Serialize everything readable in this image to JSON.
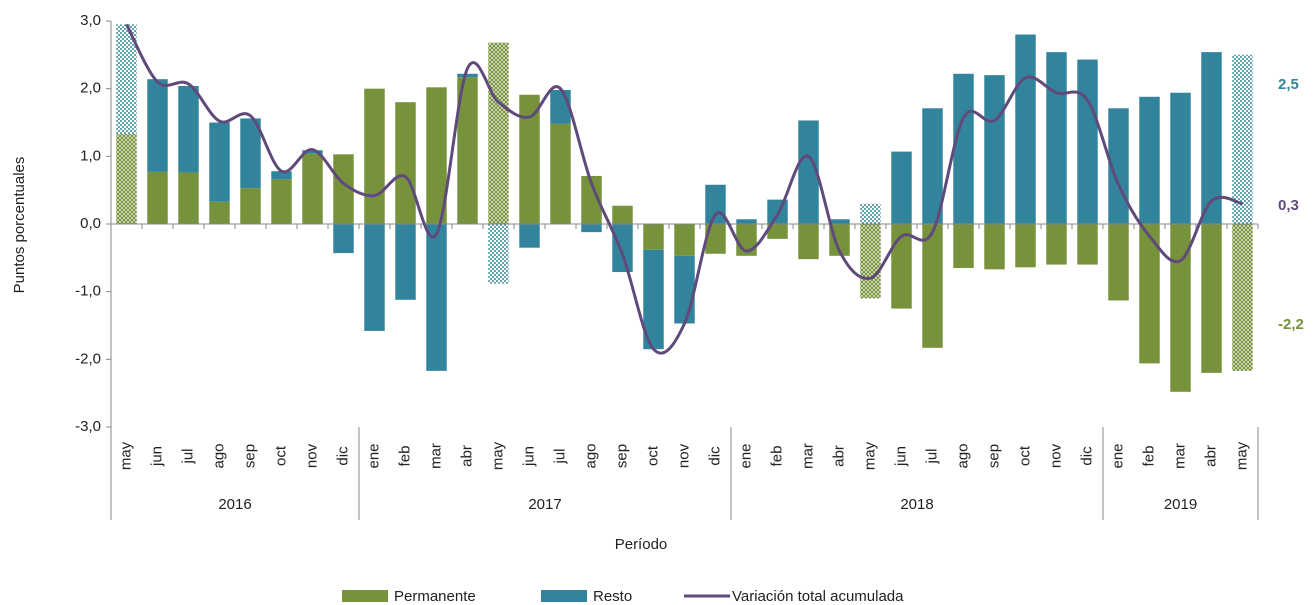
{
  "chart_data": {
    "type": "bar",
    "y_axis_label": "Puntos porcentuales",
    "x_axis_label": "Período",
    "categories": [
      "may",
      "jun",
      "jul",
      "ago",
      "sep",
      "oct",
      "nov",
      "dic",
      "ene",
      "feb",
      "mar",
      "abr",
      "may",
      "jun",
      "jul",
      "ago",
      "sep",
      "oct",
      "nov",
      "dic",
      "ene",
      "feb",
      "mar",
      "abr",
      "may",
      "jun",
      "jul",
      "ago",
      "sep",
      "oct",
      "nov",
      "dic",
      "ene",
      "feb",
      "mar",
      "abr",
      "may"
    ],
    "groups": [
      {
        "label": "2016",
        "count": 8
      },
      {
        "label": "2017",
        "count": 12
      },
      {
        "label": "2018",
        "count": 12
      },
      {
        "label": "2019",
        "count": 5
      }
    ],
    "hatched": [
      0,
      12,
      24,
      36
    ],
    "series": [
      {
        "name": "Permanente",
        "type": "bar",
        "color": "#76933c",
        "values": [
          1.33,
          0.77,
          0.76,
          0.33,
          0.53,
          0.66,
          1.04,
          1.03,
          2.0,
          1.8,
          2.02,
          2.17,
          2.68,
          1.91,
          1.48,
          0.71,
          0.27,
          -0.38,
          -0.47,
          -0.44,
          -0.47,
          -0.22,
          -0.52,
          -0.47,
          -1.1,
          -1.25,
          -1.83,
          -0.65,
          -0.67,
          -0.64,
          -0.6,
          -0.6,
          -1.13,
          -2.06,
          -2.48,
          -2.2,
          -2.17
        ]
      },
      {
        "name": "Resto",
        "type": "bar",
        "color": "#31849b",
        "values": [
          1.62,
          1.37,
          1.28,
          1.17,
          1.03,
          0.12,
          0.05,
          -0.43,
          -1.58,
          -1.12,
          -2.17,
          0.05,
          -0.88,
          -0.35,
          0.5,
          -0.12,
          -0.71,
          -1.47,
          -1.0,
          0.58,
          0.07,
          0.36,
          1.53,
          0.07,
          0.3,
          1.07,
          1.71,
          2.22,
          2.2,
          2.8,
          2.54,
          2.43,
          1.71,
          1.88,
          1.94,
          2.54,
          2.5
        ]
      },
      {
        "name": "Variación total acumulada",
        "type": "line",
        "color": "#604a7b",
        "values": [
          2.95,
          2.1,
          2.07,
          1.52,
          1.6,
          0.78,
          1.1,
          0.6,
          0.42,
          0.7,
          -0.15,
          2.3,
          1.8,
          1.58,
          2.0,
          0.6,
          -0.45,
          -1.85,
          -1.47,
          0.14,
          -0.4,
          0.14,
          1.0,
          -0.4,
          -0.8,
          -0.18,
          -0.12,
          1.57,
          1.53,
          2.16,
          1.94,
          1.83,
          0.58,
          -0.18,
          -0.54,
          0.34,
          0.3
        ]
      }
    ],
    "annotations": [
      {
        "text": "2,5",
        "color": "#31849b"
      },
      {
        "text": "0,3",
        "color": "#604a7b"
      },
      {
        "text": "-2,2",
        "color": "#76933c"
      }
    ],
    "ylim": [
      -3,
      3
    ],
    "yticks": [
      {
        "value": -3,
        "label": "-3,0"
      },
      {
        "value": -2,
        "label": "-2,0"
      },
      {
        "value": -1,
        "label": "-1,0"
      },
      {
        "value": 0,
        "label": "0,0"
      },
      {
        "value": 1,
        "label": "1,0"
      },
      {
        "value": 2,
        "label": "2,0"
      },
      {
        "value": 3,
        "label": "3,0"
      }
    ],
    "legend": "bottom"
  }
}
